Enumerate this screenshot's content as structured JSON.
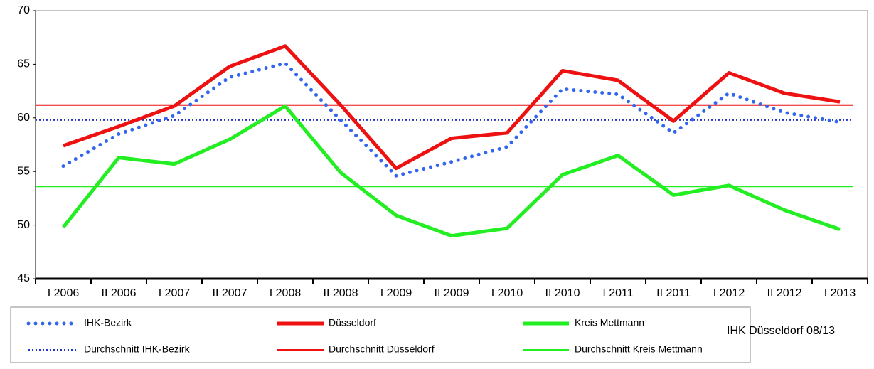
{
  "chart_data": {
    "type": "line",
    "categories": [
      "I 2006",
      "II 2006",
      "I 2007",
      "II 2007",
      "I 2008",
      "II 2008",
      "I 2009",
      "II 2009",
      "I 2010",
      "II 2010",
      "I 2011",
      "II 2011",
      "I 2012",
      "II 2012",
      "I 2013"
    ],
    "series": [
      {
        "name": "IHK-Bezirk",
        "color": "#3366ee",
        "style": "dotted",
        "values": [
          55.5,
          58.5,
          60.2,
          63.8,
          65.1,
          59.8,
          54.6,
          55.9,
          57.3,
          62.7,
          62.2,
          58.6,
          62.3,
          60.5,
          59.6
        ]
      },
      {
        "name": "Düsseldorf",
        "color": "#ee1111",
        "style": "solid",
        "values": [
          57.4,
          59.2,
          61.1,
          64.8,
          66.7,
          61.2,
          55.3,
          58.1,
          58.6,
          64.4,
          63.5,
          59.7,
          64.2,
          62.3,
          61.5
        ]
      },
      {
        "name": "Kreis Mettmann",
        "color": "#22ee22",
        "style": "solid",
        "values": [
          49.8,
          56.3,
          55.7,
          58.0,
          61.1,
          54.9,
          50.9,
          49.0,
          49.7,
          54.7,
          56.5,
          52.8,
          53.7,
          51.4,
          49.6
        ]
      }
    ],
    "averages": [
      {
        "name": "Durchschnitt IHK-Bezirk",
        "color": "#2233cc",
        "style": "dotted",
        "value": 59.8
      },
      {
        "name": "Durchschnitt Düsseldorf",
        "color": "#ee1111",
        "style": "solid",
        "value": 61.2
      },
      {
        "name": "Durchschnitt Kreis Mettmann",
        "color": "#22ee22",
        "style": "solid",
        "value": 53.6
      }
    ],
    "ylim": [
      45,
      70
    ],
    "yticks": [
      45,
      50,
      55,
      60,
      65,
      70
    ],
    "source": "IHK Düsseldorf 08/13"
  }
}
